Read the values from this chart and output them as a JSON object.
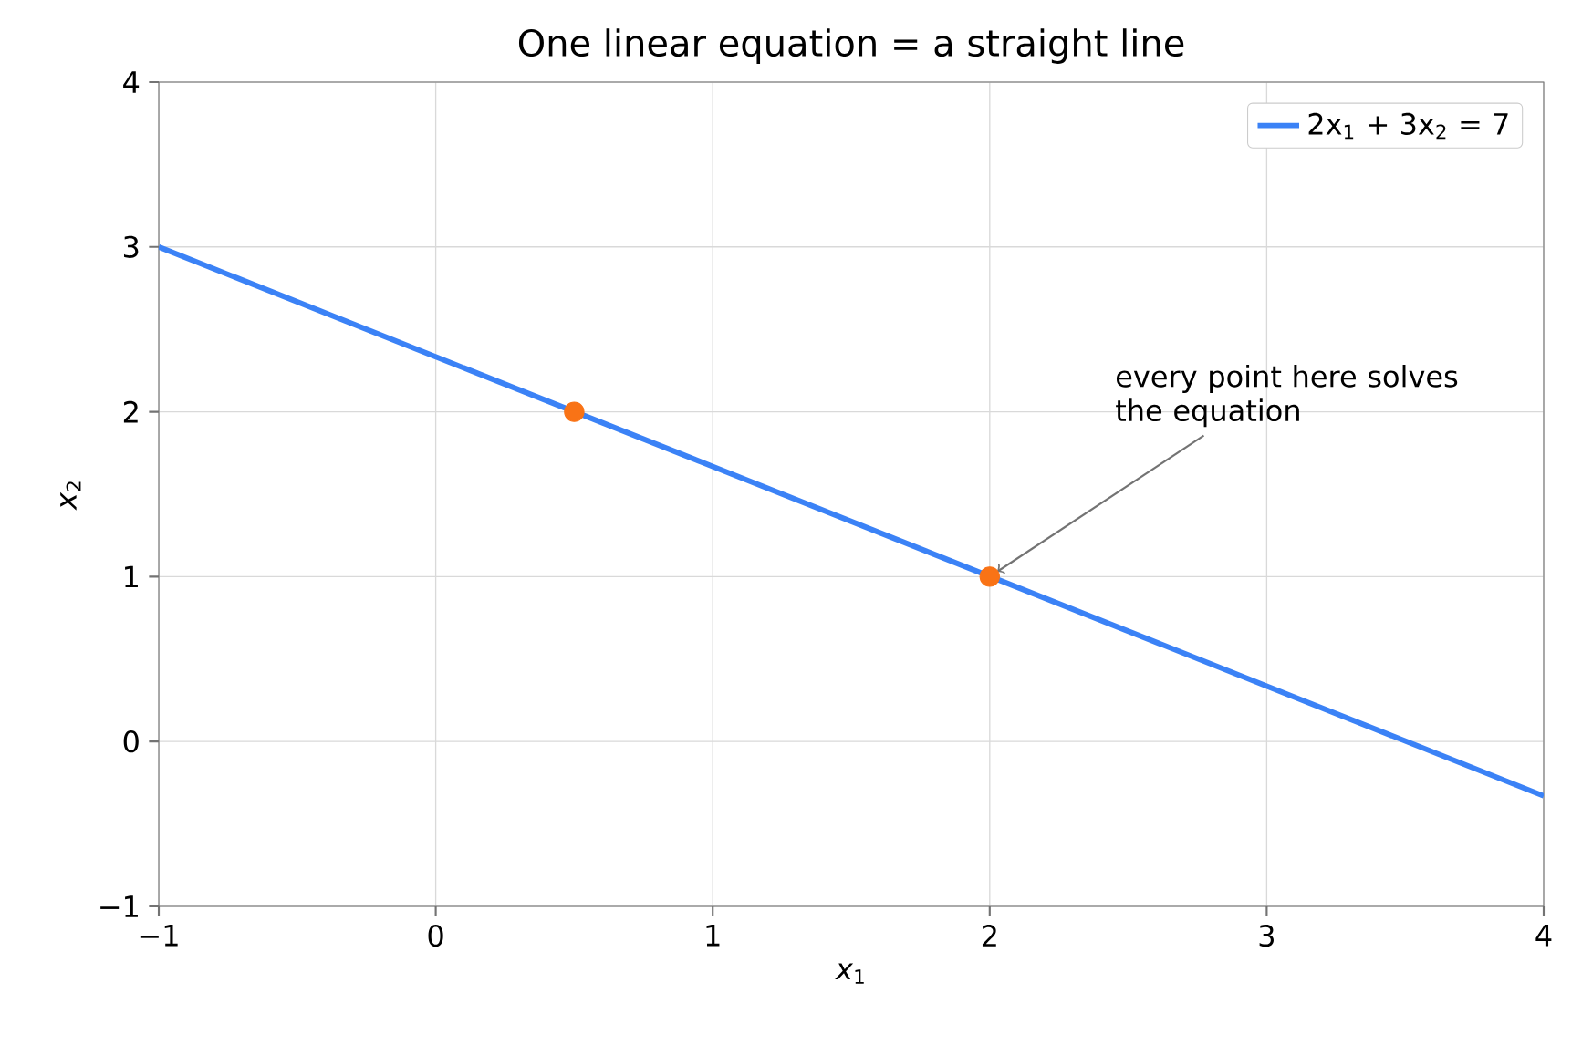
{
  "chart_data": {
    "type": "line",
    "title": "One linear equation = a straight line",
    "xlabel": "*x*$_{1}$",
    "ylabel": "*x*$_{2}$",
    "xlim": [
      -1,
      4
    ],
    "ylim": [
      -1,
      4
    ],
    "xticks": [
      {
        "value": -1,
        "label": "−1"
      },
      0,
      1,
      2,
      3,
      4
    ],
    "yticks": [
      {
        "value": -1,
        "label": "−1"
      },
      0,
      1,
      2,
      3,
      4
    ],
    "grid": true,
    "legend": "top right",
    "series": [
      {
        "name": "2x$_{1}$ + 3x$_{2}$ = 7",
        "color": "#3b82f6",
        "x": [
          -1,
          4
        ],
        "values": [
          3,
          -0.33
        ],
        "marker": "none"
      },
      {
        "type": "scatter",
        "color": "#f97316",
        "x": [
          0.5,
          2
        ],
        "values": [
          2,
          1
        ],
        "marker": "circle"
      }
    ],
    "annotations": [
      {
        "text": "every point here solves the equation",
        "x": 2,
        "y": 1
      }
    ]
  }
}
